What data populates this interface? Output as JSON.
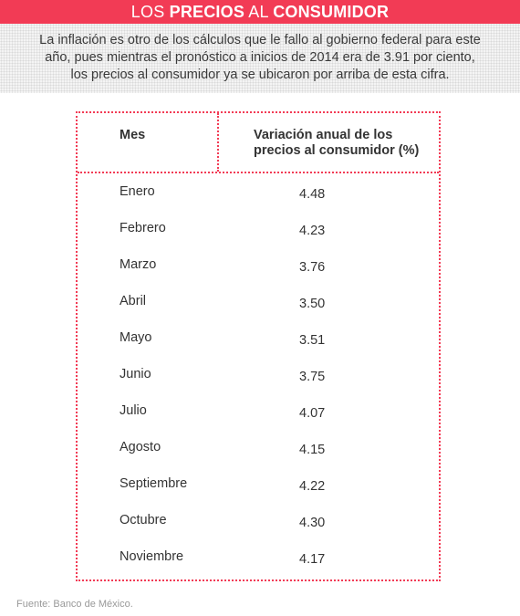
{
  "header": {
    "light1": "LOS ",
    "bold1": "PRECIOS",
    "light2": " AL ",
    "bold2": "CONSUMIDOR"
  },
  "intro": {
    "line1": "La inflación es otro de los cálculos que le fallo al gobierno federal para este",
    "line2": "año, pues mientras el pronóstico a inicios de 2014 era de 3.91 por ciento,",
    "line3": "los precios al consumidor ya se ubicaron por arriba de esta cifra."
  },
  "table": {
    "headers": {
      "mes": "Mes",
      "variacion_line1": "Variación anual de los",
      "variacion_line2": "precios al consumidor (%)"
    },
    "rows": [
      {
        "mes": "Enero",
        "valor": "4.48"
      },
      {
        "mes": "Febrero",
        "valor": "4.23"
      },
      {
        "mes": "Marzo",
        "valor": "3.76"
      },
      {
        "mes": "Abril",
        "valor": "3.50"
      },
      {
        "mes": "Mayo",
        "valor": "3.51"
      },
      {
        "mes": "Junio",
        "valor": "3.75"
      },
      {
        "mes": "Julio",
        "valor": "4.07"
      },
      {
        "mes": "Agosto",
        "valor": "4.15"
      },
      {
        "mes": "Septiembre",
        "valor": "4.22"
      },
      {
        "mes": "Octubre",
        "valor": "4.30"
      },
      {
        "mes": "Noviembre",
        "valor": "4.17"
      }
    ]
  },
  "source": "Fuente: Banco de México.",
  "colors": {
    "accent": "#f23b55"
  }
}
